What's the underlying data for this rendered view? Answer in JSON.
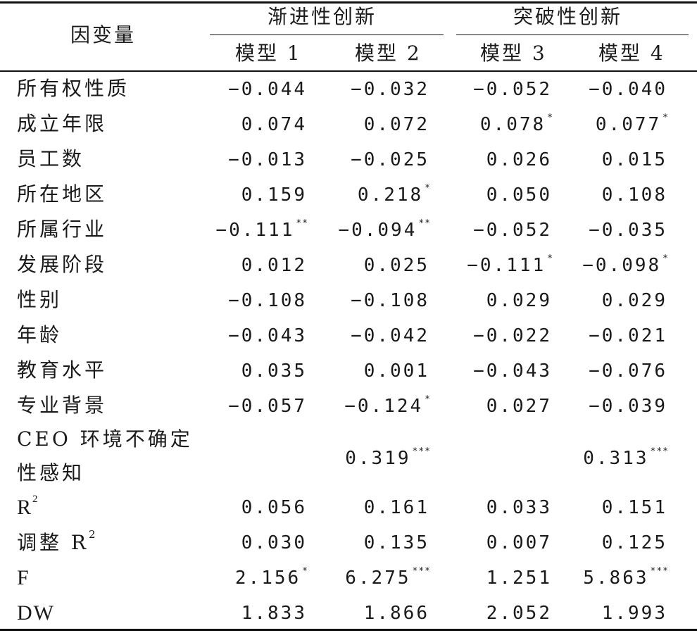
{
  "header": {
    "dependent_var": "因变量",
    "group1": "渐进性创新",
    "group2": "突破性创新",
    "models": [
      "模型 1",
      "模型 2",
      "模型 3",
      "模型 4"
    ]
  },
  "rows": [
    {
      "label": "所有权性质",
      "m1": "−0.044",
      "s1": "",
      "m2": "−0.032",
      "s2": "",
      "m3": "−0.052",
      "s3": "",
      "m4": "−0.040",
      "s4": ""
    },
    {
      "label": "成立年限",
      "m1": "0.074",
      "s1": "",
      "m2": "0.072",
      "s2": "",
      "m3": "0.078",
      "s3": "*",
      "m4": "0.077",
      "s4": "*"
    },
    {
      "label": "员工数",
      "m1": "−0.013",
      "s1": "",
      "m2": "−0.025",
      "s2": "",
      "m3": "0.026",
      "s3": "",
      "m4": "0.015",
      "s4": ""
    },
    {
      "label": "所在地区",
      "m1": "0.159",
      "s1": "",
      "m2": "0.218",
      "s2": "*",
      "m3": "0.050",
      "s3": "",
      "m4": "0.108",
      "s4": ""
    },
    {
      "label": "所属行业",
      "m1": "−0.111",
      "s1": "**",
      "m2": "−0.094",
      "s2": "**",
      "m3": "−0.052",
      "s3": "",
      "m4": "−0.035",
      "s4": ""
    },
    {
      "label": "发展阶段",
      "m1": "0.012",
      "s1": "",
      "m2": "0.025",
      "s2": "",
      "m3": "−0.111",
      "s3": "*",
      "m4": "−0.098",
      "s4": "*"
    },
    {
      "label": "性别",
      "m1": "−0.108",
      "s1": "",
      "m2": "−0.108",
      "s2": "",
      "m3": "0.029",
      "s3": "",
      "m4": "0.029",
      "s4": ""
    },
    {
      "label": "年龄",
      "m1": "−0.043",
      "s1": "",
      "m2": "−0.042",
      "s2": "",
      "m3": "−0.022",
      "s3": "",
      "m4": "−0.021",
      "s4": ""
    },
    {
      "label": "教育水平",
      "m1": "0.035",
      "s1": "",
      "m2": "0.001",
      "s2": "",
      "m3": "−0.043",
      "s3": "",
      "m4": "−0.076",
      "s4": ""
    },
    {
      "label": "专业背景",
      "m1": "−0.057",
      "s1": "",
      "m2": "−0.124",
      "s2": "*",
      "m3": "0.027",
      "s3": "",
      "m4": "−0.039",
      "s4": ""
    }
  ],
  "ceo_row": {
    "label_line1": "CEO 环境不确定",
    "label_line2": "性感知",
    "m2": "0.319",
    "s2": "***",
    "m4": "0.313",
    "s4": "***"
  },
  "stats": {
    "r2": {
      "label": "R",
      "sup": "2",
      "m1": "0.056",
      "m2": "0.161",
      "m3": "0.033",
      "m4": "0.151"
    },
    "adj_r2": {
      "label": "调整 R",
      "sup": "2",
      "m1": "0.030",
      "m2": "0.135",
      "m3": "0.007",
      "m4": "0.125"
    },
    "f": {
      "label": "F",
      "m1": "2.156",
      "s1": "*",
      "m2": "6.275",
      "s2": "***",
      "m3": "1.251",
      "m4": "5.863",
      "s4": "***"
    },
    "dw": {
      "label": "DW",
      "m1": "1.833",
      "m2": "1.866",
      "m3": "2.052",
      "m4": "1.993"
    }
  }
}
